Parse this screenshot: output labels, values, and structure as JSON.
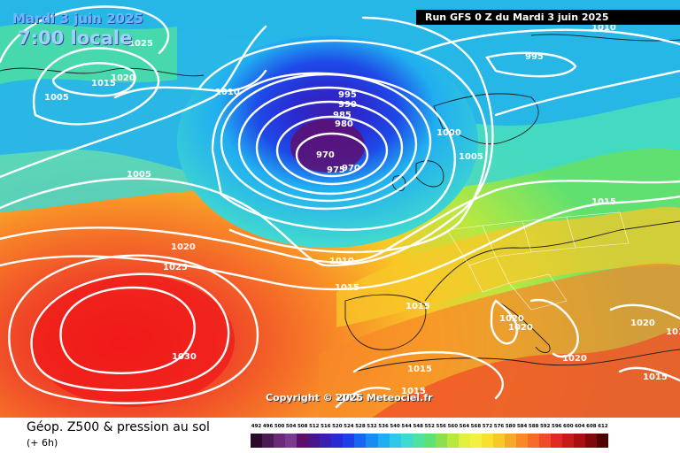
{
  "header": {
    "date": "Mardi 3 juin 2025",
    "local_time": "7:00 locale",
    "run_banner": "Run GFS 0 Z du Mardi 3 juin 2025"
  },
  "copyright": "Copyright © 2025 Meteociel.fr",
  "footer": {
    "title": "Géop. Z500 & pression au sol",
    "subtitle": "(+ 6h)"
  },
  "legend": {
    "values": [
      "492",
      "496",
      "500",
      "504",
      "508",
      "512",
      "516",
      "520",
      "524",
      "528",
      "532",
      "536",
      "540",
      "544",
      "548",
      "552",
      "556",
      "560",
      "564",
      "568",
      "572",
      "576",
      "580",
      "584",
      "588",
      "592",
      "596",
      "600",
      "604",
      "608",
      "612"
    ],
    "colors": [
      "#2a0a2a",
      "#4a1a55",
      "#6a2a78",
      "#7a3a90",
      "#5e0f6e",
      "#4a148c",
      "#3a1fb0",
      "#2a2ad0",
      "#1e3ee8",
      "#1866f0",
      "#1a8cf0",
      "#20aef0",
      "#30c8e8",
      "#40d8d0",
      "#50e0a0",
      "#60e070",
      "#8ae050",
      "#b8e840",
      "#e0f040",
      "#f4f040",
      "#f8e030",
      "#f8c828",
      "#f8a828",
      "#f88828",
      "#f46a28",
      "#f04a28",
      "#e02a20",
      "#c81a18",
      "#a81010",
      "#800808",
      "#500000"
    ]
  },
  "map_labels": {
    "isobars": [
      "1025",
      "1015",
      "1020",
      "1005",
      "1010",
      "995",
      "990",
      "985",
      "980",
      "970",
      "975",
      "970",
      "1000",
      "1005",
      "995",
      "1010",
      "1015",
      "1005",
      "1020",
      "1025",
      "1010",
      "1015",
      "1015",
      "1020",
      "1020",
      "1020",
      "1030",
      "1015",
      "1015",
      "1020",
      "1015",
      "1010",
      "1010"
    ]
  }
}
